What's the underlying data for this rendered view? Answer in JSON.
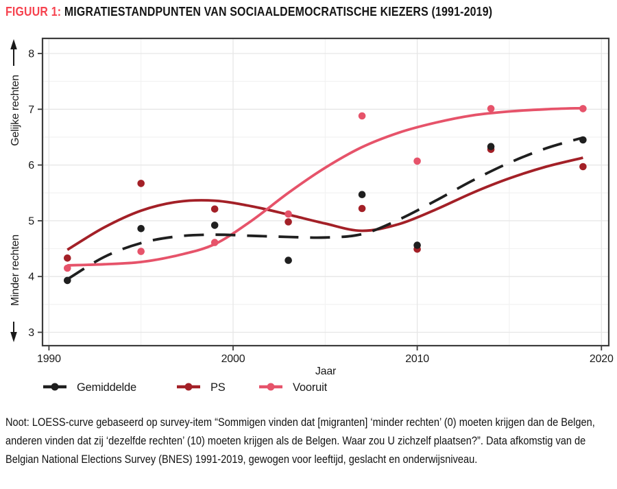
{
  "title": {
    "prefix": "FIGUUR 1:",
    "text": "MIGRATIESTANDPUNTEN VAN SOCIAALDEMOCRATISCHE KIEZERS (1991-2019)"
  },
  "colors": {
    "title_accent": "#f6424e",
    "gemiddelde": "#1f1f1f",
    "ps": "#a32027",
    "vooruit": "#e6536a",
    "grid_major": "#e6e6e6",
    "grid_minor": "#f1f1f1",
    "axis": "#3c3c3c",
    "text": "#1a1a1a"
  },
  "chart_data": {
    "type": "scatter+loess-line",
    "xlabel": "Jaar",
    "x_ticks": [
      1990,
      2000,
      2010,
      2020
    ],
    "x_minor_ticks": [
      1995,
      2005,
      2015
    ],
    "xlim": [
      1989.65,
      2020.4
    ],
    "y_ticks": [
      8,
      7,
      6,
      5,
      4,
      3
    ],
    "y_minor_ticks": [
      3.5,
      4.5,
      5.5,
      6.5,
      7.5
    ],
    "ylim": [
      2.76,
      8.27
    ],
    "y_axis_upper_label": "Gelijke rechten",
    "y_axis_lower_label": "Minder rechten",
    "survey_years": [
      1991,
      1995,
      1999,
      2003,
      2007,
      2010,
      2014,
      2019
    ],
    "series": [
      {
        "name": "PS",
        "color": "#a32027",
        "line_style": "solid",
        "points_y": [
          4.33,
          5.67,
          5.21,
          4.98,
          5.22,
          4.49,
          6.28,
          5.97
        ],
        "loess_x": [
          1991,
          1993,
          1995,
          1997,
          1999,
          2001,
          2003,
          2005,
          2007,
          2009,
          2011,
          2013,
          2015,
          2017,
          2019
        ],
        "loess_y": [
          4.48,
          4.88,
          5.18,
          5.34,
          5.36,
          5.26,
          5.11,
          4.95,
          4.82,
          4.94,
          5.2,
          5.5,
          5.76,
          5.97,
          6.13
        ]
      },
      {
        "name": "Vooruit",
        "color": "#e6536a",
        "line_style": "solid",
        "points_y": [
          4.15,
          4.45,
          4.61,
          5.12,
          6.88,
          6.07,
          7.01,
          7.01
        ],
        "loess_x": [
          1991,
          1993,
          1995,
          1997,
          1999,
          2001,
          2003,
          2005,
          2007,
          2009,
          2011,
          2013,
          2015,
          2017,
          2019
        ],
        "loess_y": [
          4.2,
          4.22,
          4.26,
          4.38,
          4.58,
          5.0,
          5.5,
          5.95,
          6.32,
          6.58,
          6.76,
          6.89,
          6.96,
          7.0,
          7.02
        ]
      },
      {
        "name": "Gemiddelde",
        "color": "#1f1f1f",
        "line_style": "dashed",
        "points_y": [
          3.93,
          4.86,
          4.92,
          4.29,
          5.47,
          4.56,
          6.33,
          6.45
        ],
        "loess_x": [
          1991,
          1993,
          1995,
          1997,
          1999,
          2001,
          2003,
          2005,
          2007,
          2009,
          2011,
          2013,
          2015,
          2017,
          2019
        ],
        "loess_y": [
          3.95,
          4.35,
          4.6,
          4.72,
          4.75,
          4.73,
          4.71,
          4.7,
          4.76,
          5.02,
          5.36,
          5.72,
          6.04,
          6.3,
          6.49
        ]
      }
    ],
    "legend": {
      "order": [
        "Gemiddelde",
        "PS",
        "Vooruit"
      ],
      "position": "bottom-left"
    },
    "grid": true
  },
  "note": "Noot: LOESS-curve gebaseerd op survey-item “Sommigen vinden dat [migranten] ‘minder rechten’ (0) moeten krijgen dan de Belgen, anderen vinden dat zij ‘dezelfde rechten’ (10) moeten krijgen als de Belgen. Waar zou U zichzelf plaatsen?”. Data afkomstig van de Belgian National Elections Survey (BNES) 1991-2019, gewogen voor leeftijd, geslacht en onderwijsniveau."
}
